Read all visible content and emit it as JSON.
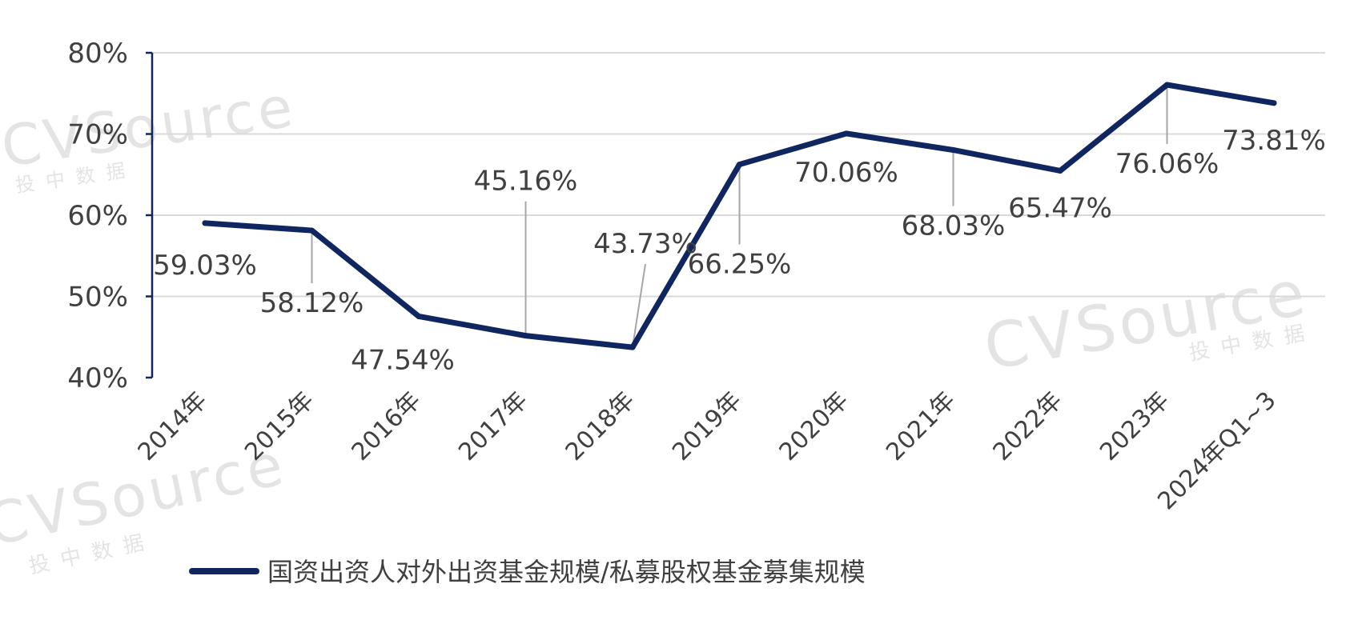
{
  "chart_data": {
    "type": "line",
    "categories": [
      "2014年",
      "2015年",
      "2016年",
      "2017年",
      "2018年",
      "2019年",
      "2020年",
      "2021年",
      "2022年",
      "2023年",
      "2024年Q1~3"
    ],
    "series": [
      {
        "name": "国资出资人对外出资基金规模/私募股权基金募集规模",
        "values": [
          59.03,
          58.12,
          47.54,
          45.16,
          43.73,
          66.25,
          70.06,
          68.03,
          65.47,
          76.06,
          73.81
        ],
        "labels": [
          "59.03%",
          "58.12%",
          "47.54%",
          "45.16%",
          "43.73%",
          "66.25%",
          "70.06%",
          "68.03%",
          "65.47%",
          "76.06%",
          "73.81%"
        ],
        "color": "#0f2660"
      }
    ],
    "y_ticks": [
      {
        "value": 40,
        "label": "40%"
      },
      {
        "value": 50,
        "label": "50%"
      },
      {
        "value": 60,
        "label": "60%"
      },
      {
        "value": 70,
        "label": "70%"
      },
      {
        "value": 80,
        "label": "80%"
      }
    ],
    "ylim": [
      40,
      80
    ],
    "grid": true,
    "legend_position": "bottom",
    "axis_color": "#0f2660",
    "grid_color": "#d9d9d9",
    "leader_color": "#a6a6a6"
  },
  "watermark": {
    "brand": "CVSource",
    "subtitle": "投中数据"
  }
}
